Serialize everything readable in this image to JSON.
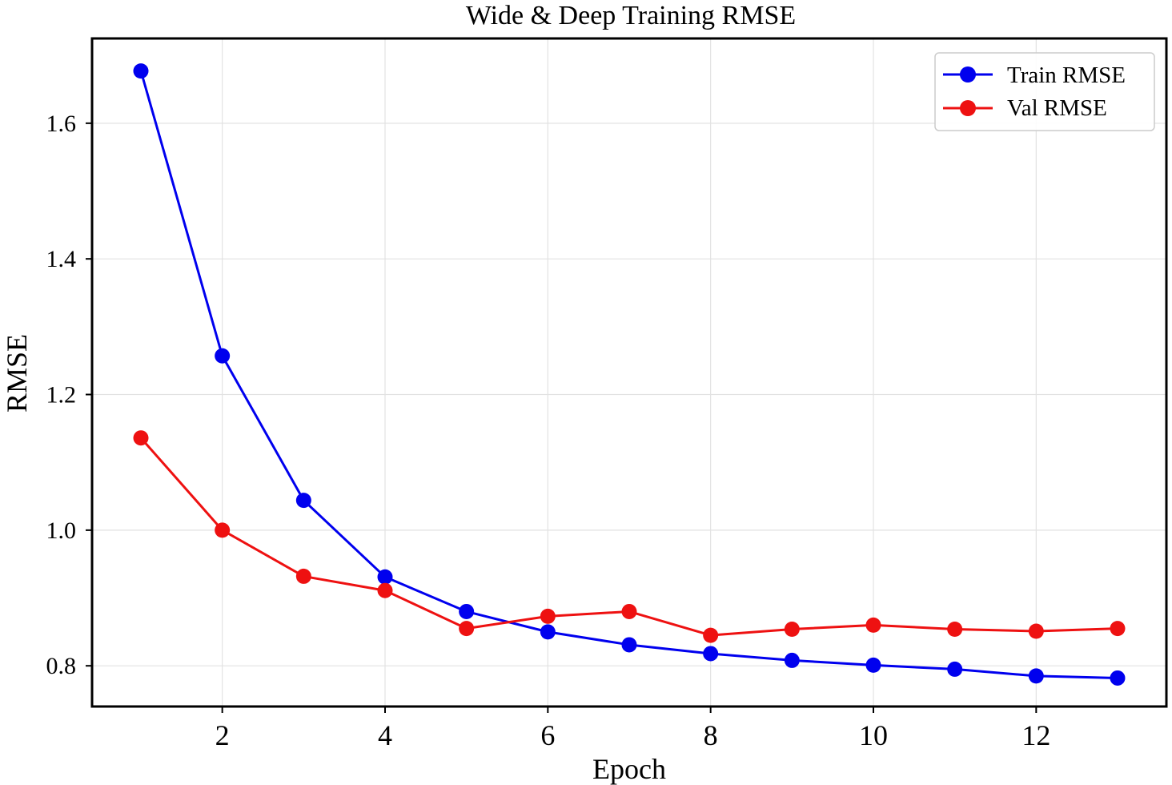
{
  "chart_data": {
    "type": "line",
    "title": "Wide & Deep Training RMSE",
    "xlabel": "Epoch",
    "ylabel": "RMSE",
    "x": [
      1,
      2,
      3,
      4,
      5,
      6,
      7,
      8,
      9,
      10,
      11,
      12,
      13
    ],
    "xlim": [
      0.4,
      13.6
    ],
    "ylim": [
      0.74,
      1.725
    ],
    "xticks": [
      2,
      4,
      6,
      8,
      10,
      12
    ],
    "xtick_labels": [
      "2",
      "4",
      "6",
      "8",
      "10",
      "12"
    ],
    "yticks": [
      0.8,
      1.0,
      1.2,
      1.4,
      1.6
    ],
    "ytick_labels": [
      "0.8",
      "1.0",
      "1.2",
      "1.4",
      "1.6"
    ],
    "grid": true,
    "legend_position": "top-right",
    "series": [
      {
        "name": "Train RMSE",
        "color": "#0000ee",
        "marker": "circle",
        "values": [
          1.677,
          1.257,
          1.044,
          0.931,
          0.88,
          0.85,
          0.831,
          0.818,
          0.808,
          0.801,
          0.795,
          0.785,
          0.782
        ]
      },
      {
        "name": "Val RMSE",
        "color": "#ee1111",
        "marker": "circle",
        "values": [
          1.136,
          1.0,
          0.932,
          0.911,
          0.855,
          0.873,
          0.88,
          0.845,
          0.854,
          0.86,
          0.854,
          0.851,
          0.855
        ]
      }
    ]
  }
}
